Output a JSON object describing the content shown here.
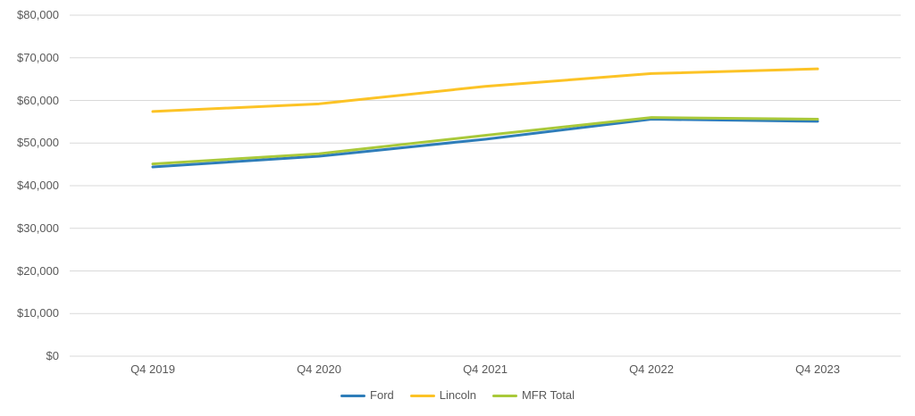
{
  "chart_data": {
    "type": "line",
    "title": "",
    "xlabel": "",
    "ylabel": "",
    "categories": [
      "Q4 2019",
      "Q4 2020",
      "Q4 2021",
      "Q4 2022",
      "Q4 2023"
    ],
    "series": [
      {
        "name": "Ford",
        "color": "#2E7DB9",
        "values": [
          44400,
          46900,
          50900,
          55600,
          55100
        ]
      },
      {
        "name": "Lincoln",
        "color": "#FCC326",
        "values": [
          57400,
          59200,
          63300,
          66300,
          67400
        ]
      },
      {
        "name": "MFR Total",
        "color": "#A9C93A",
        "values": [
          45100,
          47500,
          51800,
          56000,
          55600
        ]
      }
    ],
    "ylim": [
      0,
      80000
    ],
    "ytick_step": 10000,
    "y_tick_labels": [
      "$80,000",
      "$70,000",
      "$60,000",
      "$50,000",
      "$40,000",
      "$30,000",
      "$20,000",
      "$10,000",
      "$0"
    ],
    "grid": true,
    "legend_position": "bottom"
  },
  "legend": {
    "items": [
      {
        "label": "Ford"
      },
      {
        "label": "Lincoln"
      },
      {
        "label": "MFR Total"
      }
    ]
  },
  "colors": {
    "background": "#FFFFFF",
    "gridline": "#D9D9D9",
    "axis_text": "#595959",
    "ford": "#2E7DB9",
    "lincoln": "#FCC326",
    "mfr_total": "#A9C93A"
  }
}
